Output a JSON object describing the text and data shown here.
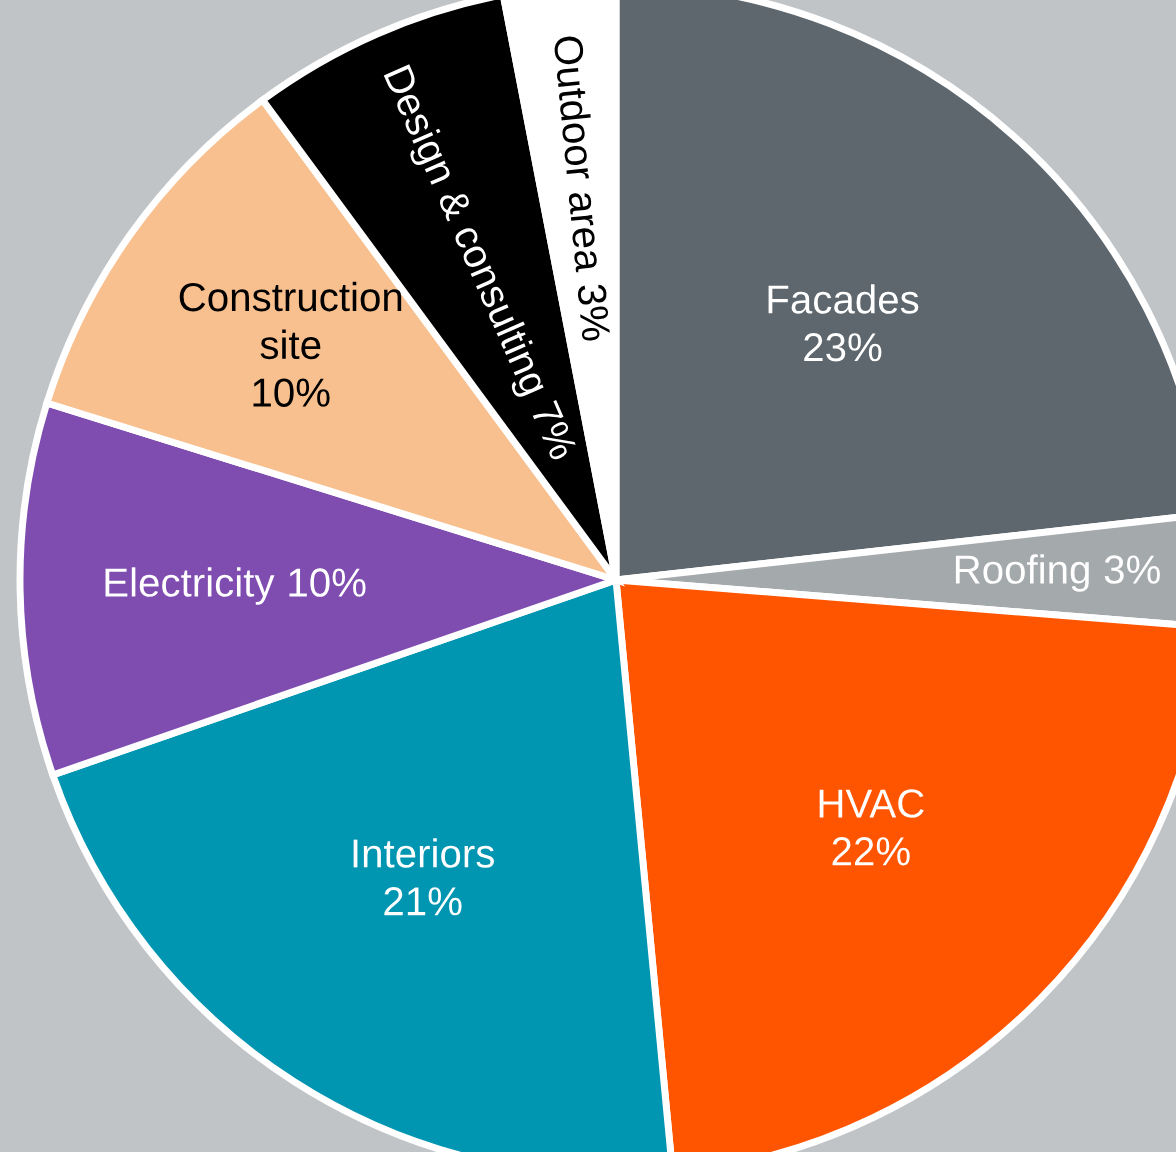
{
  "chart_data": {
    "type": "pie",
    "categories": [
      "Facades",
      "Roofing",
      "HVAC",
      "Interiors",
      "Electricity",
      "Construction site",
      "Design & consulting",
      "Outdoor area"
    ],
    "values": [
      23,
      3,
      22,
      21,
      10,
      10,
      7,
      3
    ],
    "value_labels": [
      "23%",
      "3%",
      "22%",
      "21%",
      "10%",
      "10%",
      "7%",
      "3%"
    ],
    "colors": [
      "#5e676e",
      "#a4a9ac",
      "#ff5500",
      "#0095b0",
      "#7f4cb0",
      "#f9c08f",
      "#000000",
      "#ffffff"
    ]
  }
}
